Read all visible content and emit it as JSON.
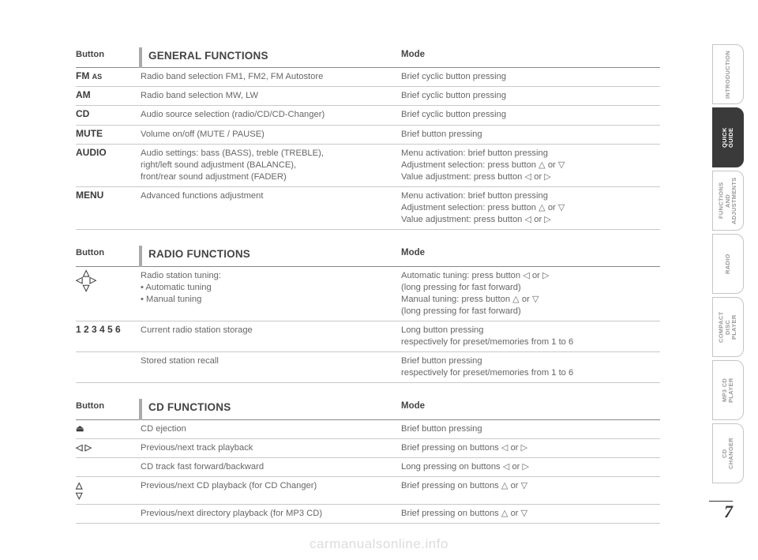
{
  "page_number": "7",
  "watermark": "carmanualsonline.info",
  "colors": {
    "text": "#555555",
    "heading": "#444444",
    "button_text": "#3b3b3b",
    "rule": "#c9c9c9",
    "header_rule": "#888888",
    "tab_inactive_text": "#9a9a9a",
    "tab_active_bg": "#3a3a3a",
    "tab_active_text": "#ffffff",
    "watermark": "#dcdcdc",
    "title_bar": "#aaaaaa"
  },
  "side_tabs": [
    {
      "label": "INTRODUCTION",
      "active": false
    },
    {
      "label": "QUICK\nGUIDE",
      "active": true
    },
    {
      "label": "FUNCTIONS AND\nADJUSTMENTS",
      "active": false
    },
    {
      "label": "RADIO",
      "active": false
    },
    {
      "label": "COMPACT\nDISC PLAYER",
      "active": false
    },
    {
      "label": "MP3 CD\nPLAYER",
      "active": false
    },
    {
      "label": "CD\nCHANGER",
      "active": false
    }
  ],
  "tables": {
    "general": {
      "header": {
        "button": "Button",
        "title": "GENERAL FUNCTIONS",
        "mode": "Mode"
      },
      "rows": [
        {
          "button_html": "<span>FM</span> <span style='font-size:9px'>AS</span>",
          "func": "Radio band selection FM1, FM2, FM Autostore",
          "mode": "Brief cyclic button pressing"
        },
        {
          "button_html": "AM",
          "func": "Radio band selection MW, LW",
          "mode": "Brief cyclic button pressing"
        },
        {
          "button_html": "CD",
          "func": "Audio source selection (radio/CD/CD-Changer)",
          "mode": "Brief cyclic button pressing"
        },
        {
          "button_html": "MUTE",
          "func": "Volume on/off (MUTE / PAUSE)",
          "mode": "Brief button pressing"
        },
        {
          "button_html": "AUDIO",
          "func": "Audio settings: bass (BASS), treble (TREBLE),\nright/left sound adjustment (BALANCE),\nfront/rear sound adjustment (FADER)",
          "mode": "Menu activation: brief button pressing\nAdjustment selection: press button △ or ▽\nValue adjustment: press button ◁ or ▷"
        },
        {
          "button_html": "MENU",
          "func": "Advanced functions adjustment",
          "mode": "Menu activation: brief button pressing\nAdjustment selection: press button △ or ▽\nValue adjustment: press button ◁ or ▷"
        }
      ]
    },
    "radio": {
      "header": {
        "button": "Button",
        "title": "RADIO FUNCTIONS",
        "mode": "Mode"
      },
      "rows": [
        {
          "button_html": "<span class='nav-cluster'><span class='row tri'>△</span><span class='row tri'>◁&nbsp;&nbsp;&nbsp;▷</span><span class='row tri'>▽</span></span>",
          "func": "Radio station tuning:\n• Automatic tuning\n• Manual tuning",
          "mode": "Automatic tuning: press button ◁ or ▷\n(long pressing for fast forward)\nManual tuning: press button △ or ▽\n(long pressing for fast forward)"
        },
        {
          "button_html": "1 2 3 4 5 6",
          "func": "Current radio station storage",
          "mode": "Long button pressing\nrespectively for preset/memories from 1 to 6"
        },
        {
          "button_html": "",
          "func": "Stored station recall",
          "mode": "Brief button pressing\nrespectively for preset/memories from 1 to 6"
        }
      ]
    },
    "cd": {
      "header": {
        "button": "Button",
        "title": "CD FUNCTIONS",
        "mode": "Mode"
      },
      "rows": [
        {
          "button_html": "<span class='tri'>⏏</span>",
          "func": "CD ejection",
          "mode": "Brief button pressing"
        },
        {
          "button_html": "<span class='tri'>◁ ▷</span>",
          "func": "Previous/next track playback",
          "mode": "Brief pressing on buttons ◁ or ▷"
        },
        {
          "button_html": "",
          "func": "CD track fast forward/backward",
          "mode": "Long pressing on buttons ◁ or ▷"
        },
        {
          "button_html": "<span class='tri'>△</span><br><span class='tri'>▽</span>",
          "func": "Previous/next CD playback (for CD Changer)",
          "mode": "Brief pressing on buttons △ or ▽"
        },
        {
          "button_html": "",
          "func": "Previous/next directory playback (for MP3 CD)",
          "mode": "Brief pressing on buttons △ or ▽"
        }
      ]
    }
  }
}
